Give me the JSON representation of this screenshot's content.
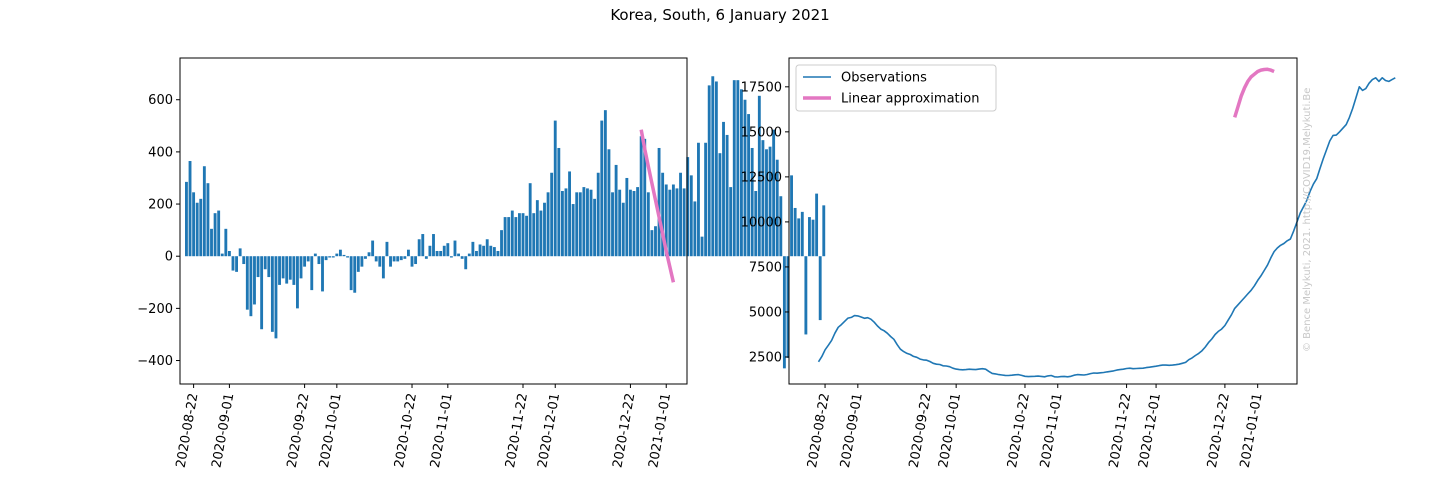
{
  "figure": {
    "title": "Korea, South, 6 January 2021",
    "watermark": "© Bence Melykuti, 2021. http://COVID19.Melykuti.Be"
  },
  "colors": {
    "bar": "#1f77b4",
    "observations": "#1f77b4",
    "approximation": "#e377c2"
  },
  "date_ticks": [
    "2020-08-22",
    "2020-09-01",
    "2020-09-22",
    "2020-10-01",
    "2020-10-22",
    "2020-11-01",
    "2020-11-22",
    "2020-12-01",
    "2020-12-22",
    "2021-01-01"
  ],
  "chart_data": [
    {
      "type": "bar",
      "x_start": "2020-08-20",
      "x_end": "2021-01-05",
      "yticks": [
        -400,
        -200,
        0,
        200,
        400,
        600
      ],
      "ylim": [
        -490,
        760
      ],
      "values": [
        285,
        365,
        245,
        205,
        220,
        345,
        280,
        105,
        165,
        175,
        10,
        105,
        20,
        -55,
        -60,
        30,
        -30,
        -205,
        -230,
        -185,
        -80,
        -280,
        -50,
        -80,
        -290,
        -315,
        -110,
        -85,
        -105,
        -90,
        -110,
        -200,
        -85,
        -40,
        -20,
        -130,
        10,
        -30,
        -135,
        -15,
        -5,
        -5,
        10,
        25,
        5,
        -5,
        -130,
        -140,
        -60,
        -40,
        -10,
        15,
        60,
        -20,
        -40,
        -85,
        55,
        -40,
        -20,
        -20,
        -15,
        -10,
        25,
        -40,
        -30,
        65,
        85,
        -10,
        40,
        85,
        20,
        20,
        40,
        50,
        -5,
        60,
        10,
        -10,
        -50,
        10,
        55,
        20,
        45,
        40,
        65,
        40,
        35,
        20,
        100,
        150,
        150,
        175,
        150,
        165,
        165,
        155,
        280,
        165,
        215,
        175,
        205,
        245,
        320,
        520,
        415,
        250,
        260,
        325,
        200,
        245,
        245,
        265,
        260,
        255,
        220,
        320,
        520,
        560,
        410,
        245,
        350,
        255,
        205,
        300,
        255,
        250,
        265,
        460,
        450,
        245,
        100,
        115,
        415,
        320,
        275,
        255,
        275,
        260,
        320,
        260,
        380,
        310,
        210,
        435,
        75,
        435,
        655,
        690,
        670,
        395,
        515,
        465,
        265,
        675,
        675,
        640,
        600,
        545,
        415,
        250,
        615,
        445,
        410,
        420,
        485,
        370,
        230,
        -430,
        -390,
        310,
        185,
        145,
        170,
        -300,
        150,
        140,
        240,
        -245,
        195
      ]
    },
    {
      "type": "line",
      "name": "Daily change linear approximation",
      "x_start": "2020-12-25",
      "x_end": "2021-01-05",
      "values": [
        485,
        410,
        345,
        280,
        215,
        150,
        85,
        20,
        -40,
        -100
      ]
    },
    {
      "type": "line",
      "x_start": "2020-08-20",
      "x_end": "2021-01-05",
      "yticks": [
        2500,
        5000,
        7500,
        10000,
        12500,
        15000,
        17500
      ],
      "ylim": [
        1000,
        19100
      ],
      "legend": {
        "location": "upper left",
        "entries": [
          "Observations",
          "Linear approximation"
        ]
      },
      "series": [
        {
          "name": "Observations",
          "values": [
            2230,
            2520,
            2900,
            3150,
            3420,
            3820,
            4150,
            4300,
            4480,
            4660,
            4700,
            4800,
            4780,
            4720,
            4650,
            4680,
            4600,
            4430,
            4220,
            4050,
            3960,
            3820,
            3640,
            3480,
            3180,
            2930,
            2800,
            2700,
            2640,
            2530,
            2480,
            2380,
            2340,
            2320,
            2250,
            2150,
            2100,
            2080,
            2010,
            2000,
            1960,
            1880,
            1830,
            1800,
            1790,
            1800,
            1820,
            1810,
            1800,
            1830,
            1850,
            1820,
            1700,
            1590,
            1560,
            1520,
            1500,
            1480,
            1470,
            1490,
            1510,
            1520,
            1480,
            1430,
            1410,
            1420,
            1430,
            1440,
            1420,
            1400,
            1450,
            1470,
            1400,
            1390,
            1410,
            1420,
            1400,
            1430,
            1490,
            1520,
            1510,
            1500,
            1530,
            1580,
            1610,
            1600,
            1620,
            1640,
            1670,
            1700,
            1730,
            1770,
            1800,
            1820,
            1860,
            1880,
            1850,
            1860,
            1870,
            1880,
            1910,
            1930,
            1960,
            1990,
            2020,
            2050,
            2050,
            2040,
            2050,
            2070,
            2100,
            2150,
            2200,
            2350,
            2450,
            2580,
            2700,
            2850,
            3050,
            3300,
            3500,
            3750,
            3920,
            4050,
            4250,
            4550,
            4850,
            5200,
            5400,
            5600,
            5800,
            6000,
            6200,
            6450,
            6750,
            7000,
            7300,
            7600,
            8000,
            8350,
            8550,
            8700,
            8800,
            8950,
            9050,
            9500,
            10000,
            10500,
            10850,
            11200,
            11700,
            12100,
            12400,
            12950,
            13500,
            14000,
            14500,
            14800,
            14820,
            15000,
            15200,
            15400,
            15800,
            16300,
            16900,
            17500,
            17300,
            17400,
            17700,
            17900,
            18000,
            17800,
            18000,
            17850,
            17800,
            17900,
            18000
          ]
        },
        {
          "name": "Linear approximation",
          "x_start": "2020-12-25",
          "values": [
            15800,
            16400,
            17000,
            17450,
            17800,
            18050,
            18200,
            18350,
            18430,
            18460,
            18470,
            18430,
            18350
          ]
        }
      ]
    }
  ]
}
